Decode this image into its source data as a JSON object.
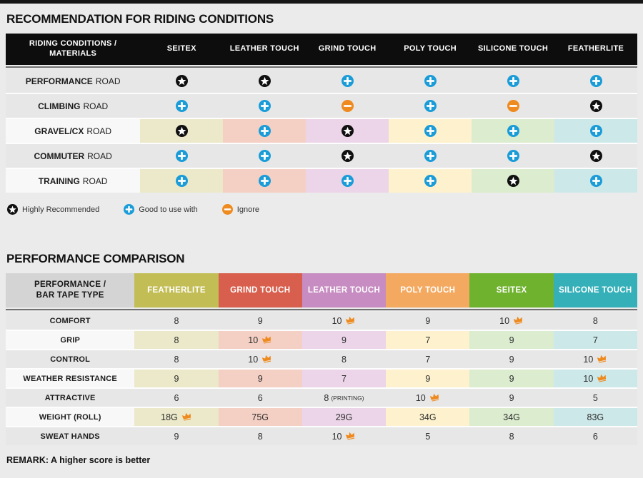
{
  "page": {
    "top_bar_color": "#161616",
    "background": "#ebebeb"
  },
  "icon_colors": {
    "star_bg": "#101010",
    "plus_bg": "#1a9cd8",
    "minus_bg": "#ee8a1e",
    "crown": "#ee8a1e",
    "glyph": "#ffffff"
  },
  "chart_data": [
    {
      "type": "table",
      "title": "RECOMMENDATION FOR RIDING CONDITIONS",
      "corner_header": [
        "RIDING CONDITIONS /",
        "MATERIALS"
      ],
      "columns": [
        "SEITEX",
        "LEATHER TOUCH",
        "GRIND TOUCH",
        "POLY TOUCH",
        "SILICONE TOUCH",
        "FEATHERLITE"
      ],
      "column_tints": [
        "#ebe9c9",
        "#f4cfc4",
        "#ecd5e9",
        "#fdf2cd",
        "#dcecce",
        "#cde8e9"
      ],
      "plain_row_bg": "#e7e7e7",
      "tinted_label_bg": "#f8f8f8",
      "rows": [
        {
          "label": "PERFORMANCE",
          "label_suffix": "ROAD",
          "tinted": false,
          "ratings": [
            "star",
            "star",
            "plus",
            "plus",
            "plus",
            "plus"
          ]
        },
        {
          "label": "CLIMBING",
          "label_suffix": "ROAD",
          "tinted": false,
          "ratings": [
            "plus",
            "plus",
            "minus",
            "plus",
            "minus",
            "star"
          ]
        },
        {
          "label": "GRAVEL/CX",
          "label_suffix": "ROAD",
          "tinted": true,
          "ratings": [
            "star",
            "plus",
            "star",
            "plus",
            "plus",
            "plus"
          ]
        },
        {
          "label": "COMMUTER",
          "label_suffix": "ROAD",
          "tinted": false,
          "ratings": [
            "plus",
            "plus",
            "star",
            "plus",
            "plus",
            "star"
          ]
        },
        {
          "label": "TRAINING",
          "label_suffix": "ROAD",
          "tinted": true,
          "ratings": [
            "plus",
            "plus",
            "plus",
            "plus",
            "star",
            "plus"
          ]
        }
      ],
      "legend": [
        {
          "icon": "star",
          "label": "Highly Recommended"
        },
        {
          "icon": "plus",
          "label": "Good to use with"
        },
        {
          "icon": "minus",
          "label": "Ignore"
        }
      ]
    },
    {
      "type": "table",
      "title": "PERFORMANCE COMPARISON",
      "corner_header": [
        "PERFORMANCE /",
        "BAR TAPE TYPE"
      ],
      "columns": [
        {
          "label": "FEATHERLITE",
          "color": "#c2bd55"
        },
        {
          "label": "GRIND TOUCH",
          "color": "#d85f4d"
        },
        {
          "label": "LEATHER TOUCH",
          "color": "#c78cc1"
        },
        {
          "label": "POLY TOUCH",
          "color": "#f4a960"
        },
        {
          "label": "SEITEX",
          "color": "#6fb22e"
        },
        {
          "label": "SILICONE TOUCH",
          "color": "#35b0b9"
        }
      ],
      "column_tints": [
        "#ebe9c9",
        "#f4cfc4",
        "#ecd5e9",
        "#fdf2cd",
        "#dcecce",
        "#cde8e9"
      ],
      "plain_row_bg": "#e7e7e7",
      "tinted_label_bg": "#f8f8f8",
      "rows": [
        {
          "label": "COMFORT",
          "tinted": false,
          "cells": [
            {
              "value": "8"
            },
            {
              "value": "9"
            },
            {
              "value": "10",
              "crown": true
            },
            {
              "value": "9"
            },
            {
              "value": "10",
              "crown": true
            },
            {
              "value": "8"
            }
          ]
        },
        {
          "label": "GRIP",
          "tinted": true,
          "cells": [
            {
              "value": "8"
            },
            {
              "value": "10",
              "crown": true
            },
            {
              "value": "9"
            },
            {
              "value": "7"
            },
            {
              "value": "9"
            },
            {
              "value": "7"
            }
          ]
        },
        {
          "label": "CONTROL",
          "tinted": false,
          "cells": [
            {
              "value": "8"
            },
            {
              "value": "10",
              "crown": true
            },
            {
              "value": "8"
            },
            {
              "value": "7"
            },
            {
              "value": "9"
            },
            {
              "value": "10",
              "crown": true
            }
          ]
        },
        {
          "label": "WEATHER RESISTANCE",
          "tinted": true,
          "cells": [
            {
              "value": "9"
            },
            {
              "value": "9"
            },
            {
              "value": "7"
            },
            {
              "value": "9"
            },
            {
              "value": "9"
            },
            {
              "value": "10",
              "crown": true
            }
          ]
        },
        {
          "label": "ATTRACTIVE",
          "tinted": false,
          "cells": [
            {
              "value": "6"
            },
            {
              "value": "6"
            },
            {
              "value": "8",
              "suffix": "(PRINTING)"
            },
            {
              "value": "10",
              "crown": true
            },
            {
              "value": "9"
            },
            {
              "value": "5"
            }
          ]
        },
        {
          "label": "WEIGHT (ROLL)",
          "tinted": true,
          "cells": [
            {
              "value": "18G",
              "crown": true
            },
            {
              "value": "75G"
            },
            {
              "value": "29G"
            },
            {
              "value": "34G"
            },
            {
              "value": "34G"
            },
            {
              "value": "83G"
            }
          ]
        },
        {
          "label": "SWEAT HANDS",
          "tinted": false,
          "cells": [
            {
              "value": "9"
            },
            {
              "value": "8"
            },
            {
              "value": "10",
              "crown": true
            },
            {
              "value": "5"
            },
            {
              "value": "8"
            },
            {
              "value": "6"
            }
          ]
        }
      ],
      "remark": "REMARK: A higher score is better"
    }
  ]
}
